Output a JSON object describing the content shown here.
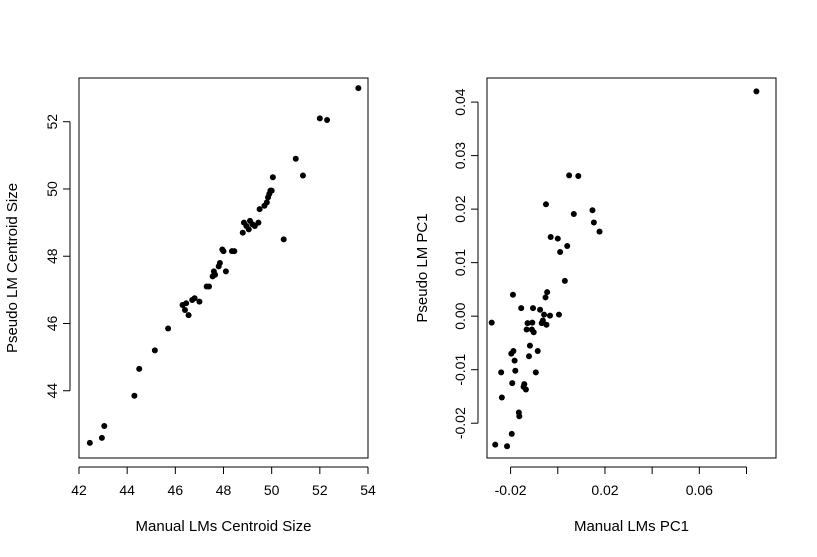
{
  "chart_data": [
    {
      "type": "scatter",
      "xlabel": "Manual LMs Centroid Size",
      "ylabel": "Pseudo LM Centroid Size",
      "xlim": [
        42,
        54
      ],
      "ylim": [
        42,
        53.3
      ],
      "xticks": [
        42,
        44,
        46,
        48,
        50,
        52,
        54
      ],
      "yticks": [
        44,
        46,
        48,
        50,
        52
      ],
      "grid": false,
      "points": [
        [
          42.45,
          42.45
        ],
        [
          42.95,
          42.6
        ],
        [
          43.05,
          42.95
        ],
        [
          44.3,
          43.85
        ],
        [
          44.5,
          44.65
        ],
        [
          45.15,
          45.2
        ],
        [
          45.7,
          45.85
        ],
        [
          46.3,
          46.55
        ],
        [
          46.4,
          46.4
        ],
        [
          46.45,
          46.6
        ],
        [
          46.55,
          46.25
        ],
        [
          46.7,
          46.7
        ],
        [
          46.8,
          46.75
        ],
        [
          47.0,
          46.65
        ],
        [
          47.3,
          47.1
        ],
        [
          47.4,
          47.1
        ],
        [
          47.55,
          47.4
        ],
        [
          47.6,
          47.55
        ],
        [
          47.65,
          47.45
        ],
        [
          47.8,
          47.7
        ],
        [
          47.85,
          47.8
        ],
        [
          47.95,
          48.2
        ],
        [
          48.0,
          48.15
        ],
        [
          48.1,
          47.55
        ],
        [
          48.35,
          48.15
        ],
        [
          48.45,
          48.15
        ],
        [
          48.8,
          48.7
        ],
        [
          48.85,
          49.0
        ],
        [
          48.95,
          48.9
        ],
        [
          49.05,
          48.8
        ],
        [
          49.1,
          49.05
        ],
        [
          49.2,
          48.95
        ],
        [
          49.3,
          48.9
        ],
        [
          49.45,
          49.0
        ],
        [
          49.5,
          49.4
        ],
        [
          49.7,
          49.5
        ],
        [
          49.8,
          49.6
        ],
        [
          49.85,
          49.75
        ],
        [
          49.9,
          49.85
        ],
        [
          49.95,
          49.95
        ],
        [
          50.0,
          49.95
        ],
        [
          50.05,
          50.35
        ],
        [
          50.5,
          48.5
        ],
        [
          51.0,
          50.9
        ],
        [
          51.3,
          50.4
        ],
        [
          52.0,
          52.1
        ],
        [
          52.3,
          52.05
        ],
        [
          53.6,
          53.0
        ]
      ]
    },
    {
      "type": "scatter",
      "xlabel": "Manual LMs PC1",
      "ylabel": "Pseudo LM PC1",
      "xlim": [
        -0.03,
        0.0925
      ],
      "ylim": [
        -0.0265,
        0.0445
      ],
      "xticks": [
        "-0.02",
        "0.02",
        "0.06"
      ],
      "xtick_positions": [
        -0.02,
        0.0,
        0.02,
        0.04,
        0.06,
        0.08
      ],
      "yticks": [
        "-0.02",
        "-0.01",
        "0.00",
        "0.01",
        "0.02",
        "0.03",
        "0.04"
      ],
      "grid": false,
      "points": [
        [
          -0.028,
          -0.0012
        ],
        [
          -0.0265,
          -0.024
        ],
        [
          -0.024,
          -0.0105
        ],
        [
          -0.0237,
          -0.0152
        ],
        [
          -0.0215,
          -0.0243
        ],
        [
          -0.0195,
          -0.022
        ],
        [
          -0.0197,
          -0.007
        ],
        [
          -0.0193,
          -0.0125
        ],
        [
          -0.019,
          0.004
        ],
        [
          -0.0188,
          -0.0065
        ],
        [
          -0.0183,
          -0.0083
        ],
        [
          -0.018,
          -0.0102
        ],
        [
          -0.0165,
          -0.018
        ],
        [
          -0.0163,
          -0.0187
        ],
        [
          -0.0155,
          0.0015
        ],
        [
          -0.0145,
          -0.0132
        ],
        [
          -0.0142,
          -0.0127
        ],
        [
          -0.0135,
          -0.0137
        ],
        [
          -0.0132,
          -0.0025
        ],
        [
          -0.0128,
          -0.0013
        ],
        [
          -0.0122,
          -0.0075
        ],
        [
          -0.0118,
          -0.0055
        ],
        [
          -0.011,
          -0.0025
        ],
        [
          -0.0108,
          -0.0012
        ],
        [
          -0.0105,
          0.0015
        ],
        [
          -0.0102,
          -0.003
        ],
        [
          -0.0093,
          -0.0105
        ],
        [
          -0.0085,
          -0.0065
        ],
        [
          -0.0075,
          0.0012
        ],
        [
          -0.0068,
          -0.0013
        ],
        [
          -0.0063,
          -0.0008
        ],
        [
          -0.0058,
          0.0003
        ],
        [
          -0.0052,
          0.0035
        ],
        [
          -0.005,
          0.0209
        ],
        [
          -0.0048,
          -0.0016
        ],
        [
          -0.0045,
          0.0045
        ],
        [
          -0.0033,
          0.0001
        ],
        [
          -0.003,
          0.0148
        ],
        [
          0.0,
          0.0145
        ],
        [
          0.0005,
          0.0003
        ],
        [
          0.001,
          0.012
        ],
        [
          0.003,
          0.0066
        ],
        [
          0.004,
          0.0131
        ],
        [
          0.0048,
          0.0263
        ],
        [
          0.0068,
          0.0191
        ],
        [
          0.0087,
          0.0262
        ],
        [
          0.0147,
          0.0198
        ],
        [
          0.0153,
          0.0175
        ],
        [
          0.0177,
          0.0158
        ],
        [
          0.0842,
          0.042
        ]
      ]
    }
  ]
}
